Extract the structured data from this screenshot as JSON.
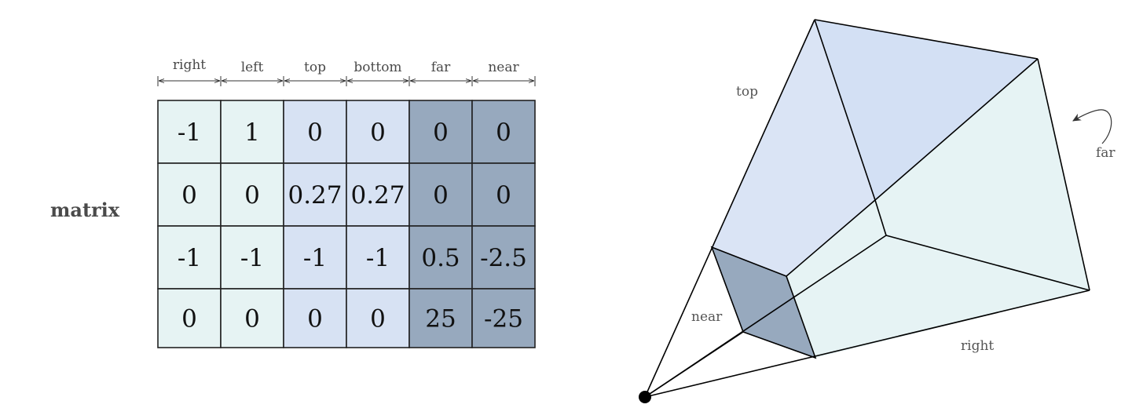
{
  "matrix_title": "matrix",
  "columns": [
    {
      "label": "right",
      "fill": "#e6f3f3"
    },
    {
      "label": "left",
      "fill": "#e6f3f3"
    },
    {
      "label": "top",
      "fill": "#d7e2f3"
    },
    {
      "label": "bottom",
      "fill": "#d7e2f3"
    },
    {
      "label": "far",
      "fill": "#97a9be"
    },
    {
      "label": "near",
      "fill": "#97a9be"
    }
  ],
  "rows": [
    [
      "-1",
      "1",
      "0",
      "0",
      "0",
      "0"
    ],
    [
      "0",
      "0",
      "0.27",
      "0.27",
      "0",
      "0"
    ],
    [
      "-1",
      "-1",
      "-1",
      "-1",
      "0.5",
      "-2.5"
    ],
    [
      "0",
      "0",
      "0",
      "0",
      "25",
      "-25"
    ]
  ],
  "frustum": {
    "labels": {
      "top": "top",
      "far": "far",
      "near": "near",
      "right": "right"
    },
    "colors": {
      "top_face": "#dae4f5",
      "top_face_far": "#d3e0f4",
      "right_face": "#e6f3f4",
      "far_face": "#e6f3f4",
      "near_face": "#97a9be",
      "apex": "#000000",
      "edge": "#000000"
    }
  }
}
